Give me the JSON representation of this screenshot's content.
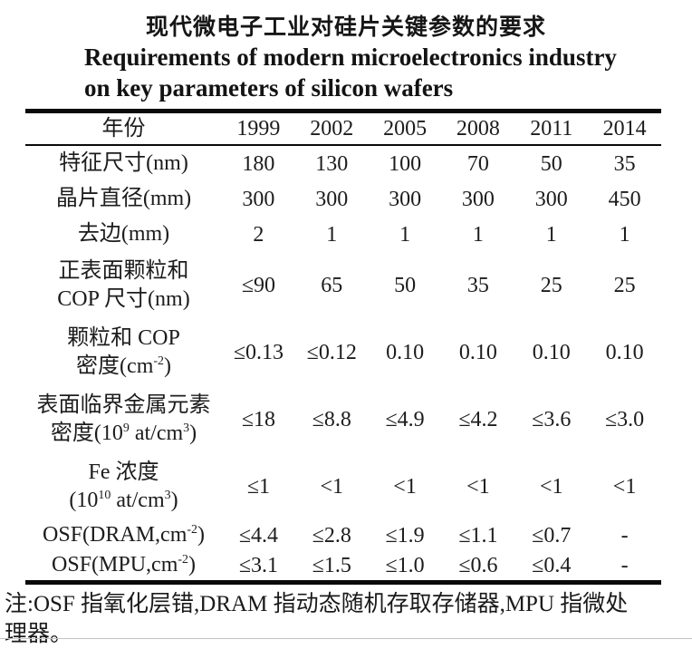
{
  "title": {
    "zh": "现代微电子工业对硅片关键参数的要求",
    "en_line1": "Requirements of modern microelectronics industry",
    "en_line2": "on key parameters of silicon wafers"
  },
  "table": {
    "header_label": "年份",
    "years": [
      "1999",
      "2002",
      "2005",
      "2008",
      "2011",
      "2014"
    ],
    "rows": [
      {
        "label_lines": [
          "特征尺寸(nm)"
        ],
        "values": [
          "180",
          "130",
          "100",
          "70",
          "50",
          "35"
        ]
      },
      {
        "label_lines": [
          "晶片直径(mm)"
        ],
        "values": [
          "300",
          "300",
          "300",
          "300",
          "300",
          "450"
        ]
      },
      {
        "label_lines": [
          "去边(mm)"
        ],
        "values": [
          "2",
          "1",
          "1",
          "1",
          "1",
          "1"
        ]
      },
      {
        "label_lines": [
          "正表面颗粒和",
          "COP 尺寸(nm)"
        ],
        "values": [
          "≤90",
          "65",
          "50",
          "35",
          "25",
          "25"
        ]
      },
      {
        "label_lines": [
          "颗粒和 COP",
          "密度(cm^-2^)"
        ],
        "values": [
          "≤0.13",
          "≤0.12",
          "0.10",
          "0.10",
          "0.10",
          "0.10"
        ]
      },
      {
        "label_lines": [
          "表面临界金属元素",
          "密度(10^9^ at/cm^3^)"
        ],
        "values": [
          "≤18",
          "≤8.8",
          "≤4.9",
          "≤4.2",
          "≤3.6",
          "≤3.0"
        ]
      },
      {
        "label_lines": [
          "Fe 浓度",
          "(10^10^ at/cm^3^)"
        ],
        "values": [
          "≤1",
          "<1",
          "<1",
          "<1",
          "<1",
          "<1"
        ]
      },
      {
        "label_lines": [
          "OSF(DRAM,cm^-2^)"
        ],
        "values": [
          "≤4.4",
          "≤2.8",
          "≤1.9",
          "≤1.1",
          "≤0.7",
          "-"
        ]
      },
      {
        "label_lines": [
          "OSF(MPU,cm^-2^)"
        ],
        "values": [
          "≤3.1",
          "≤1.5",
          "≤1.0",
          "≤0.6",
          "≤0.4",
          "-"
        ]
      }
    ]
  },
  "footnote": {
    "line1": "注:OSF 指氧化层错,DRAM 指动态随机存取存储器,MPU 指微处",
    "line2": "理器。"
  },
  "colors": {
    "text": "#1c1c1c",
    "rule": "#0a0a0a",
    "background": "#ffffff"
  }
}
